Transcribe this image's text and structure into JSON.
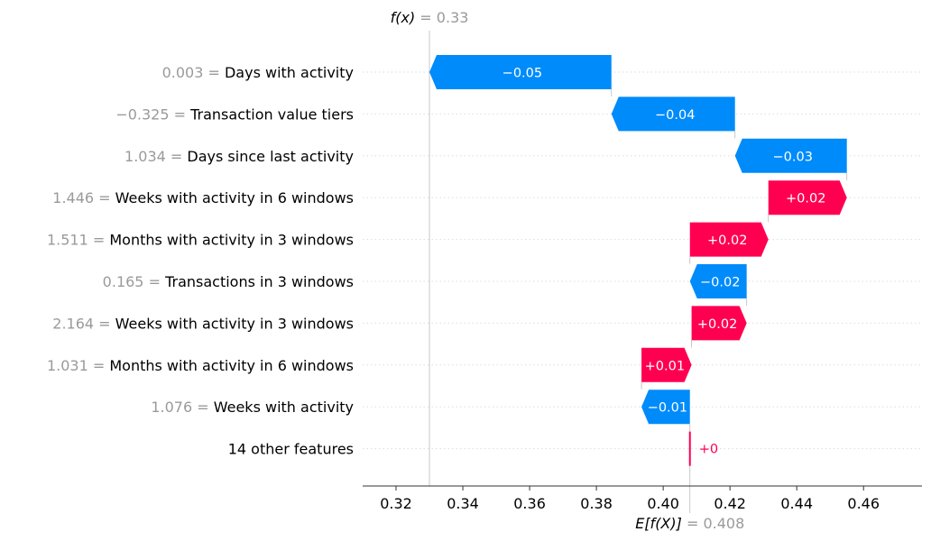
{
  "chart_data": {
    "type": "waterfall",
    "output_label": "f(x)",
    "output_value_text": "= 0.33",
    "expected_label": "E[f(X)]",
    "expected_value_text": "= 0.408",
    "fx": 0.33,
    "base_value": 0.408,
    "xlim": [
      0.31,
      0.4775
    ],
    "ticks": [
      0.32,
      0.34,
      0.36,
      0.38,
      0.4,
      0.42,
      0.44,
      0.46
    ],
    "tick_labels": [
      "0.32",
      "0.34",
      "0.36",
      "0.38",
      "0.40",
      "0.42",
      "0.44",
      "0.46"
    ],
    "features": [
      {
        "value": "0.003",
        "name": "Days with activity",
        "start": 0.3845,
        "end": 0.33,
        "label": "−0.05"
      },
      {
        "value": "−0.325",
        "name": "Transaction value tiers",
        "start": 0.4215,
        "end": 0.3845,
        "label": "−0.04"
      },
      {
        "value": "1.034",
        "name": "Days since last activity",
        "start": 0.455,
        "end": 0.4215,
        "label": "−0.03"
      },
      {
        "value": "1.446",
        "name": "Weeks with activity in 6 windows",
        "start": 0.4315,
        "end": 0.455,
        "label": "+0.02"
      },
      {
        "value": "1.511",
        "name": "Months with activity in 3 windows",
        "start": 0.408,
        "end": 0.4315,
        "label": "+0.02"
      },
      {
        "value": "0.165",
        "name": "Transactions in 3 windows",
        "start": 0.425,
        "end": 0.408,
        "label": "−0.02"
      },
      {
        "value": "2.164",
        "name": "Weeks with activity in 3 windows",
        "start": 0.4085,
        "end": 0.425,
        "label": "+0.02"
      },
      {
        "value": "1.031",
        "name": "Months with activity in 6 windows",
        "start": 0.3935,
        "end": 0.4085,
        "label": "+0.01"
      },
      {
        "value": "1.076",
        "name": "Weeks with activity",
        "start": 0.408,
        "end": 0.3935,
        "label": "−0.01"
      },
      {
        "value": "",
        "name": "14 other features",
        "start": 0.408,
        "end": 0.408,
        "label": "+0"
      }
    ],
    "colors": {
      "positive": "#ff0051",
      "negative": "#008bfb"
    }
  }
}
